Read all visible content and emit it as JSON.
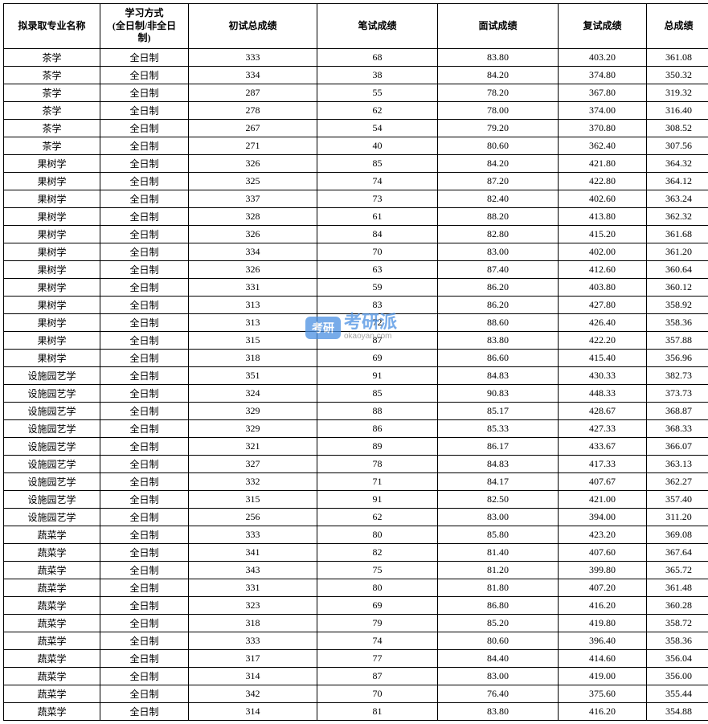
{
  "table": {
    "columns": [
      "拟录取专业名称",
      "学习方式\n(全日制/非全日\n制)",
      "初试总成绩",
      "笔试成绩",
      "面试成绩",
      "复试成绩",
      "总成绩"
    ],
    "rows": [
      [
        "茶学",
        "全日制",
        "333",
        "68",
        "83.80",
        "403.20",
        "361.08"
      ],
      [
        "茶学",
        "全日制",
        "334",
        "38",
        "84.20",
        "374.80",
        "350.32"
      ],
      [
        "茶学",
        "全日制",
        "287",
        "55",
        "78.20",
        "367.80",
        "319.32"
      ],
      [
        "茶学",
        "全日制",
        "278",
        "62",
        "78.00",
        "374.00",
        "316.40"
      ],
      [
        "茶学",
        "全日制",
        "267",
        "54",
        "79.20",
        "370.80",
        "308.52"
      ],
      [
        "茶学",
        "全日制",
        "271",
        "40",
        "80.60",
        "362.40",
        "307.56"
      ],
      [
        "果树学",
        "全日制",
        "326",
        "85",
        "84.20",
        "421.80",
        "364.32"
      ],
      [
        "果树学",
        "全日制",
        "325",
        "74",
        "87.20",
        "422.80",
        "364.12"
      ],
      [
        "果树学",
        "全日制",
        "337",
        "73",
        "82.40",
        "402.60",
        "363.24"
      ],
      [
        "果树学",
        "全日制",
        "328",
        "61",
        "88.20",
        "413.80",
        "362.32"
      ],
      [
        "果树学",
        "全日制",
        "326",
        "84",
        "82.80",
        "415.20",
        "361.68"
      ],
      [
        "果树学",
        "全日制",
        "334",
        "70",
        "83.00",
        "402.00",
        "361.20"
      ],
      [
        "果树学",
        "全日制",
        "326",
        "63",
        "87.40",
        "412.60",
        "360.64"
      ],
      [
        "果树学",
        "全日制",
        "331",
        "59",
        "86.20",
        "403.80",
        "360.12"
      ],
      [
        "果树学",
        "全日制",
        "313",
        "83",
        "86.20",
        "427.80",
        "358.92"
      ],
      [
        "果树学",
        "全日制",
        "313",
        "72",
        "88.60",
        "426.40",
        "358.36"
      ],
      [
        "果树学",
        "全日制",
        "315",
        "87",
        "83.80",
        "422.20",
        "357.88"
      ],
      [
        "果树学",
        "全日制",
        "318",
        "69",
        "86.60",
        "415.40",
        "356.96"
      ],
      [
        "设施园艺学",
        "全日制",
        "351",
        "91",
        "84.83",
        "430.33",
        "382.73"
      ],
      [
        "设施园艺学",
        "全日制",
        "324",
        "85",
        "90.83",
        "448.33",
        "373.73"
      ],
      [
        "设施园艺学",
        "全日制",
        "329",
        "88",
        "85.17",
        "428.67",
        "368.87"
      ],
      [
        "设施园艺学",
        "全日制",
        "329",
        "86",
        "85.33",
        "427.33",
        "368.33"
      ],
      [
        "设施园艺学",
        "全日制",
        "321",
        "89",
        "86.17",
        "433.67",
        "366.07"
      ],
      [
        "设施园艺学",
        "全日制",
        "327",
        "78",
        "84.83",
        "417.33",
        "363.13"
      ],
      [
        "设施园艺学",
        "全日制",
        "332",
        "71",
        "84.17",
        "407.67",
        "362.27"
      ],
      [
        "设施园艺学",
        "全日制",
        "315",
        "91",
        "82.50",
        "421.00",
        "357.40"
      ],
      [
        "设施园艺学",
        "全日制",
        "256",
        "62",
        "83.00",
        "394.00",
        "311.20"
      ],
      [
        "蔬菜学",
        "全日制",
        "333",
        "80",
        "85.80",
        "423.20",
        "369.08"
      ],
      [
        "蔬菜学",
        "全日制",
        "341",
        "82",
        "81.40",
        "407.60",
        "367.64"
      ],
      [
        "蔬菜学",
        "全日制",
        "343",
        "75",
        "81.20",
        "399.80",
        "365.72"
      ],
      [
        "蔬菜学",
        "全日制",
        "331",
        "80",
        "81.80",
        "407.20",
        "361.48"
      ],
      [
        "蔬菜学",
        "全日制",
        "323",
        "69",
        "86.80",
        "416.20",
        "360.28"
      ],
      [
        "蔬菜学",
        "全日制",
        "318",
        "79",
        "85.20",
        "419.80",
        "358.72"
      ],
      [
        "蔬菜学",
        "全日制",
        "333",
        "74",
        "80.60",
        "396.40",
        "358.36"
      ],
      [
        "蔬菜学",
        "全日制",
        "317",
        "77",
        "84.40",
        "414.60",
        "356.04"
      ],
      [
        "蔬菜学",
        "全日制",
        "314",
        "87",
        "83.00",
        "419.00",
        "356.00"
      ],
      [
        "蔬菜学",
        "全日制",
        "342",
        "70",
        "76.40",
        "375.60",
        "355.44"
      ],
      [
        "蔬菜学",
        "全日制",
        "314",
        "81",
        "83.80",
        "416.20",
        "354.88"
      ]
    ],
    "column_classes": [
      "col-major",
      "col-mode",
      "col-initial",
      "col-written",
      "col-interview",
      "col-retest",
      "col-total"
    ],
    "border_color": "#000000",
    "background_color": "#ffffff",
    "header_fontsize": 12,
    "cell_fontsize": 12
  },
  "watermark": {
    "badge_text": "考研",
    "main_text": "考研派",
    "sub_text": "okaoyan.com",
    "badge_bg": "#4a90e2",
    "main_color": "#4a90e2",
    "sub_color": "#888888"
  }
}
